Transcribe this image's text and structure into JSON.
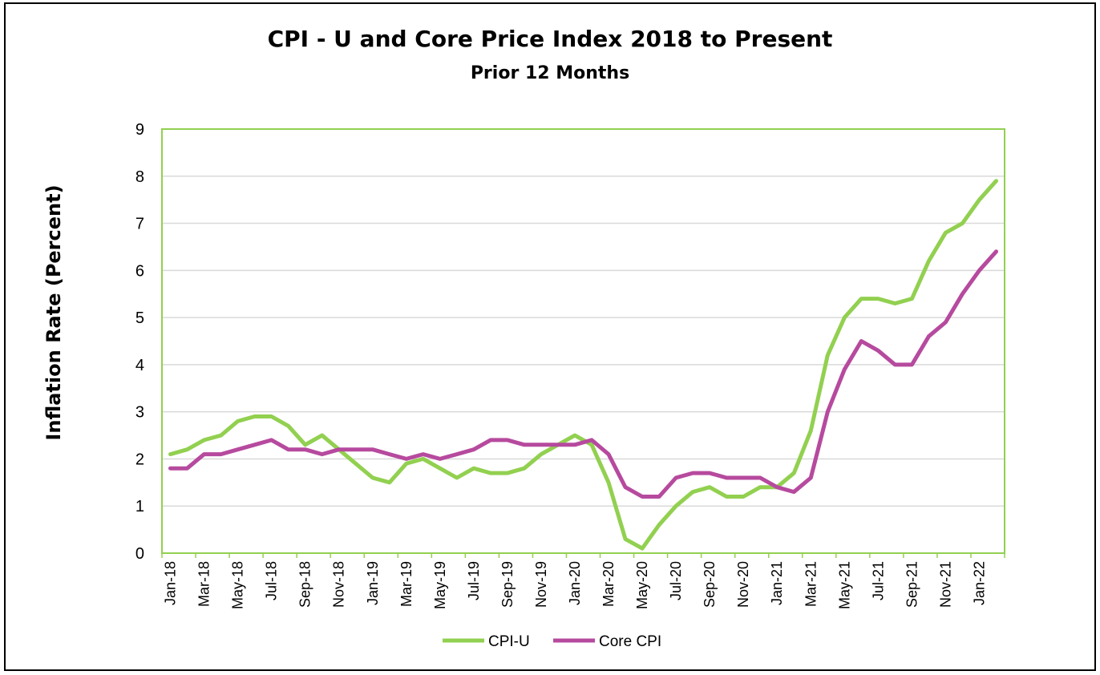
{
  "chart_data": {
    "type": "line",
    "title": "CPI - U and Core Price Index 2018 to Present",
    "subtitle": "Prior 12 Months",
    "xlabel": "",
    "ylabel": "Inflation Rate (Percent)",
    "ylim": [
      0,
      9
    ],
    "yticks": [
      "0",
      "1",
      "2",
      "3",
      "4",
      "5",
      "6",
      "7",
      "8",
      "9"
    ],
    "grid": true,
    "legend_position": "bottom",
    "x": [
      "Jan-18",
      "Feb-18",
      "Mar-18",
      "Apr-18",
      "May-18",
      "Jun-18",
      "Jul-18",
      "Aug-18",
      "Sep-18",
      "Oct-18",
      "Nov-18",
      "Dec-18",
      "Jan-19",
      "Feb-19",
      "Mar-19",
      "Apr-19",
      "May-19",
      "Jun-19",
      "Jul-19",
      "Aug-19",
      "Sep-19",
      "Oct-19",
      "Nov-19",
      "Dec-19",
      "Jan-20",
      "Feb-20",
      "Mar-20",
      "Apr-20",
      "May-20",
      "Jun-20",
      "Jul-20",
      "Aug-20",
      "Sep-20",
      "Oct-20",
      "Nov-20",
      "Dec-20",
      "Jan-21",
      "Feb-21",
      "Mar-21",
      "Apr-21",
      "May-21",
      "Jun-21",
      "Jul-21",
      "Aug-21",
      "Sep-21",
      "Oct-21",
      "Nov-21",
      "Dec-21",
      "Jan-22",
      "Feb-22"
    ],
    "xtick_labels": [
      "Jan-18",
      "Mar-18",
      "May-18",
      "Jul-18",
      "Sep-18",
      "Nov-18",
      "Jan-19",
      "Mar-19",
      "May-19",
      "Jul-19",
      "Sep-19",
      "Nov-19",
      "Jan-20",
      "Mar-20",
      "May-20",
      "Jul-20",
      "Sep-20",
      "Nov-20",
      "Jan-21",
      "Mar-21",
      "May-21",
      "Jul-21",
      "Sep-21",
      "Nov-21",
      "Jan-22"
    ],
    "series": [
      {
        "name": "CPI-U",
        "color": "#92D050",
        "values": [
          2.1,
          2.2,
          2.4,
          2.5,
          2.8,
          2.9,
          2.9,
          2.7,
          2.3,
          2.5,
          2.2,
          1.9,
          1.6,
          1.5,
          1.9,
          2.0,
          1.8,
          1.6,
          1.8,
          1.7,
          1.7,
          1.8,
          2.1,
          2.3,
          2.5,
          2.3,
          1.5,
          0.3,
          0.1,
          0.6,
          1.0,
          1.3,
          1.4,
          1.2,
          1.2,
          1.4,
          1.4,
          1.7,
          2.6,
          4.2,
          5.0,
          5.4,
          5.4,
          5.3,
          5.4,
          6.2,
          6.8,
          7.0,
          7.5,
          7.9
        ]
      },
      {
        "name": "Core CPI",
        "color": "#B64A9E",
        "values": [
          1.8,
          1.8,
          2.1,
          2.1,
          2.2,
          2.3,
          2.4,
          2.2,
          2.2,
          2.1,
          2.2,
          2.2,
          2.2,
          2.1,
          2.0,
          2.1,
          2.0,
          2.1,
          2.2,
          2.4,
          2.4,
          2.3,
          2.3,
          2.3,
          2.3,
          2.4,
          2.1,
          1.4,
          1.2,
          1.2,
          1.6,
          1.7,
          1.7,
          1.6,
          1.6,
          1.6,
          1.4,
          1.3,
          1.6,
          3.0,
          3.9,
          4.5,
          4.3,
          4.0,
          4.0,
          4.6,
          4.9,
          5.5,
          6.0,
          6.4
        ]
      }
    ],
    "colors": {
      "axis_frame": "#92D050",
      "gridline": "#D9D9D9",
      "outer_border": "#000000"
    }
  }
}
